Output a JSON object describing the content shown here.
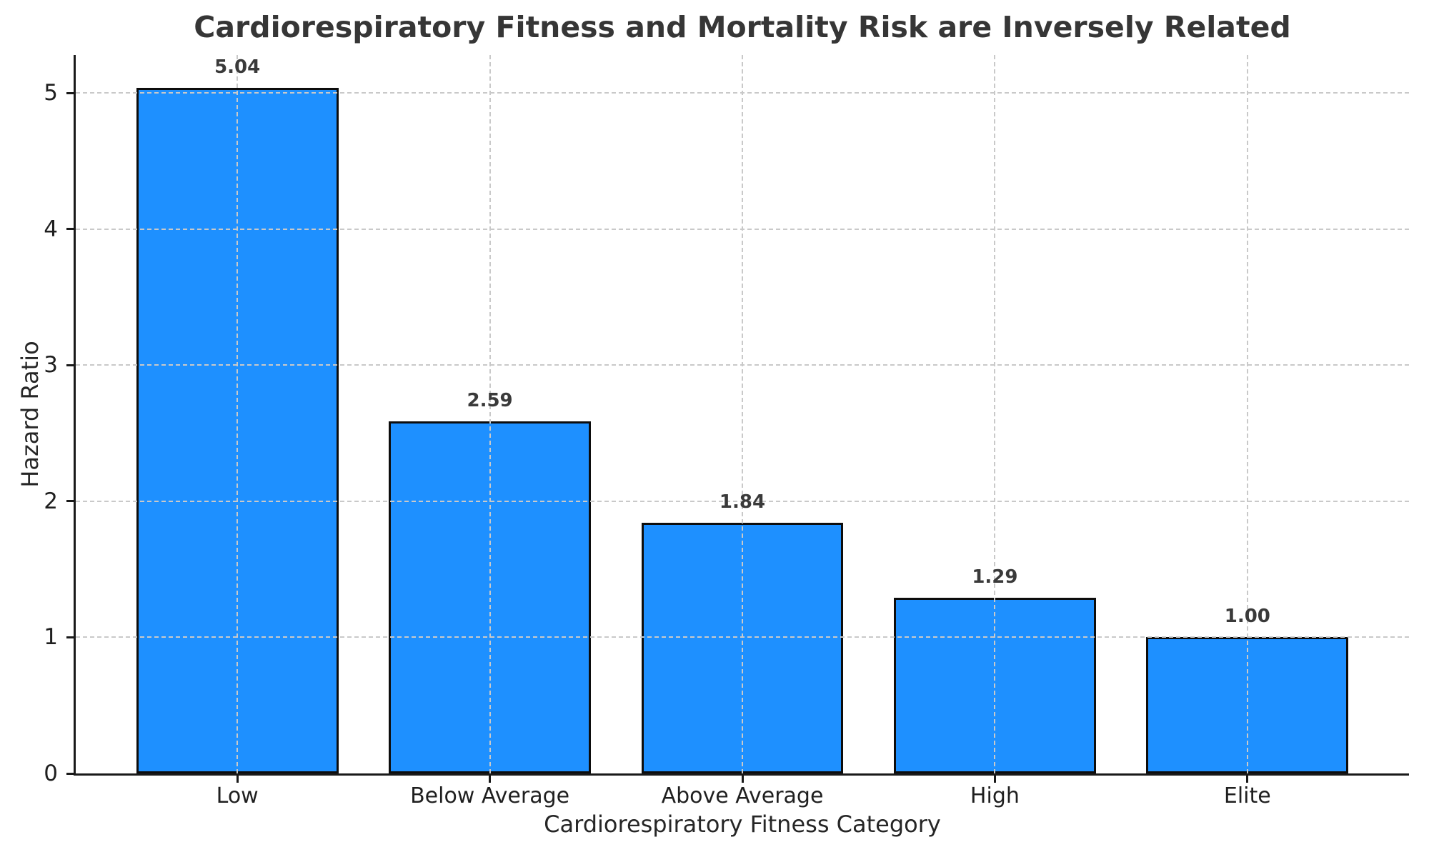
{
  "chart_data": {
    "type": "bar",
    "title": "Cardiorespiratory Fitness and Mortality Risk are Inversely Related",
    "xlabel": "Cardiorespiratory Fitness Category",
    "ylabel": "Hazard Ratio",
    "categories": [
      "Low",
      "Below Average",
      "Above Average",
      "High",
      "Elite"
    ],
    "values": [
      5.04,
      2.59,
      1.84,
      1.29,
      1.0
    ],
    "bar_value_labels": [
      "5.04",
      "2.59",
      "1.84",
      "1.29",
      "1.00"
    ],
    "yticks": [
      0,
      1,
      2,
      3,
      4,
      5
    ],
    "ytick_labels": [
      "0",
      "1",
      "2",
      "3",
      "4",
      "5"
    ],
    "ylim": [
      0,
      5.28
    ],
    "grid": "dashed light-gray horizontal lines at each y tick and vertical lines at each category center, drawn above bars",
    "legend": null,
    "colors": {
      "bar_fill": "#1E90FF",
      "bar_edge": "#0d0d0d",
      "grid_line": "#c9c9c9",
      "spine": "#1a1a1a",
      "title_text": "#363636",
      "tick_text": "#1f1f1f",
      "axis_label_text": "#262626",
      "value_label_text": "#3a3a3a",
      "background": "#ffffff"
    }
  }
}
